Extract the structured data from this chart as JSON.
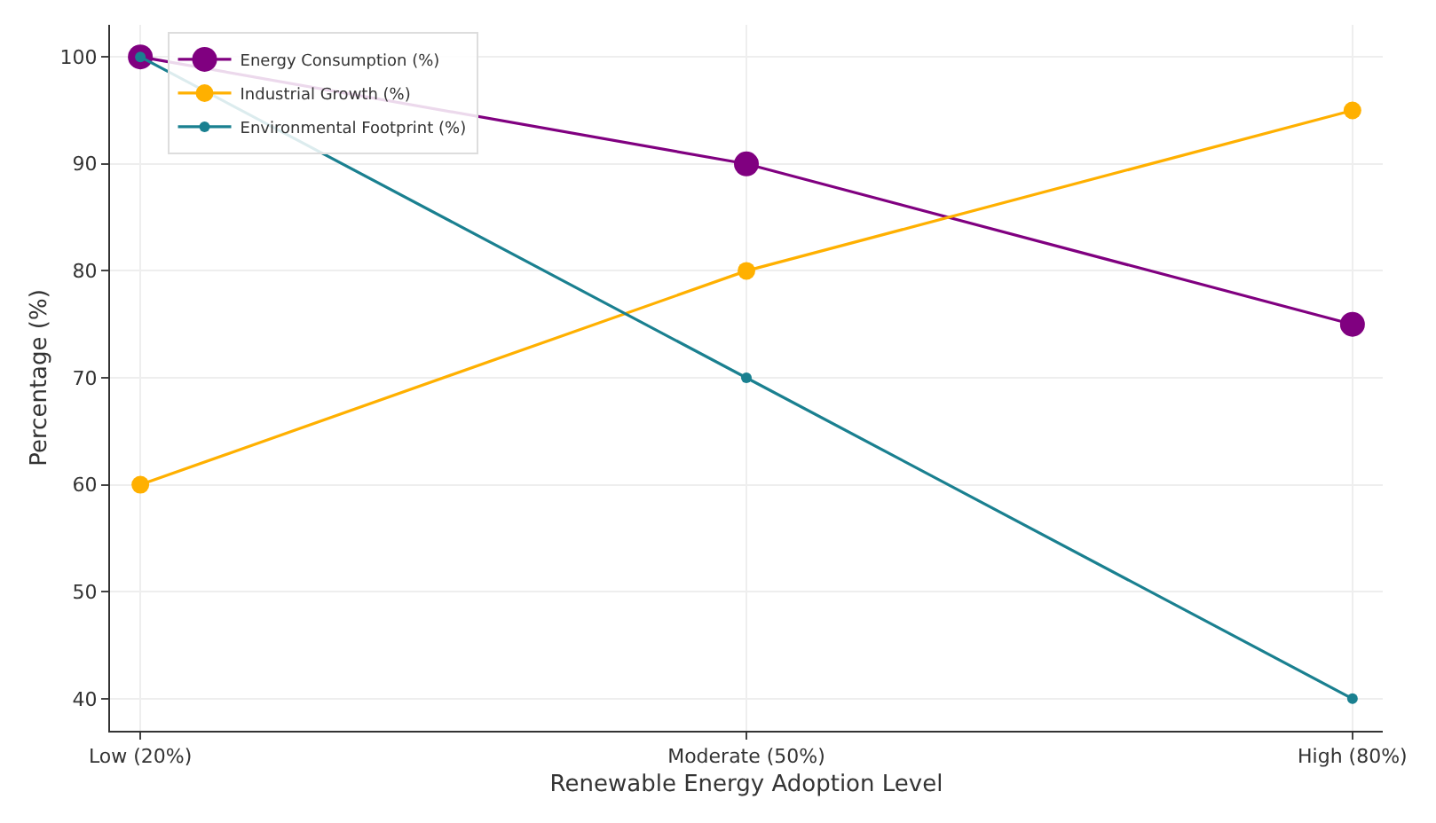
{
  "chart_data": {
    "type": "line",
    "xlabel": "Renewable Energy Adoption Level",
    "ylabel": "Percentage (%)",
    "categories": [
      "Low (20%)",
      "Moderate (50%)",
      "High (80%)"
    ],
    "series": [
      {
        "name": "Energy Consumption (%)",
        "color": "#800080",
        "values": [
          100,
          90,
          75
        ]
      },
      {
        "name": "Industrial Growth (%)",
        "color": "#ffb000",
        "values": [
          60,
          80,
          95
        ]
      },
      {
        "name": "Environmental Footprint (%)",
        "color": "#1a8090",
        "values": [
          100,
          70,
          40
        ]
      }
    ],
    "ylim": [
      37,
      103
    ],
    "yticks": [
      40,
      50,
      60,
      70,
      80,
      90,
      100
    ],
    "grid": true,
    "legend": "top left",
    "marker": "circle",
    "line_style": "solid"
  }
}
